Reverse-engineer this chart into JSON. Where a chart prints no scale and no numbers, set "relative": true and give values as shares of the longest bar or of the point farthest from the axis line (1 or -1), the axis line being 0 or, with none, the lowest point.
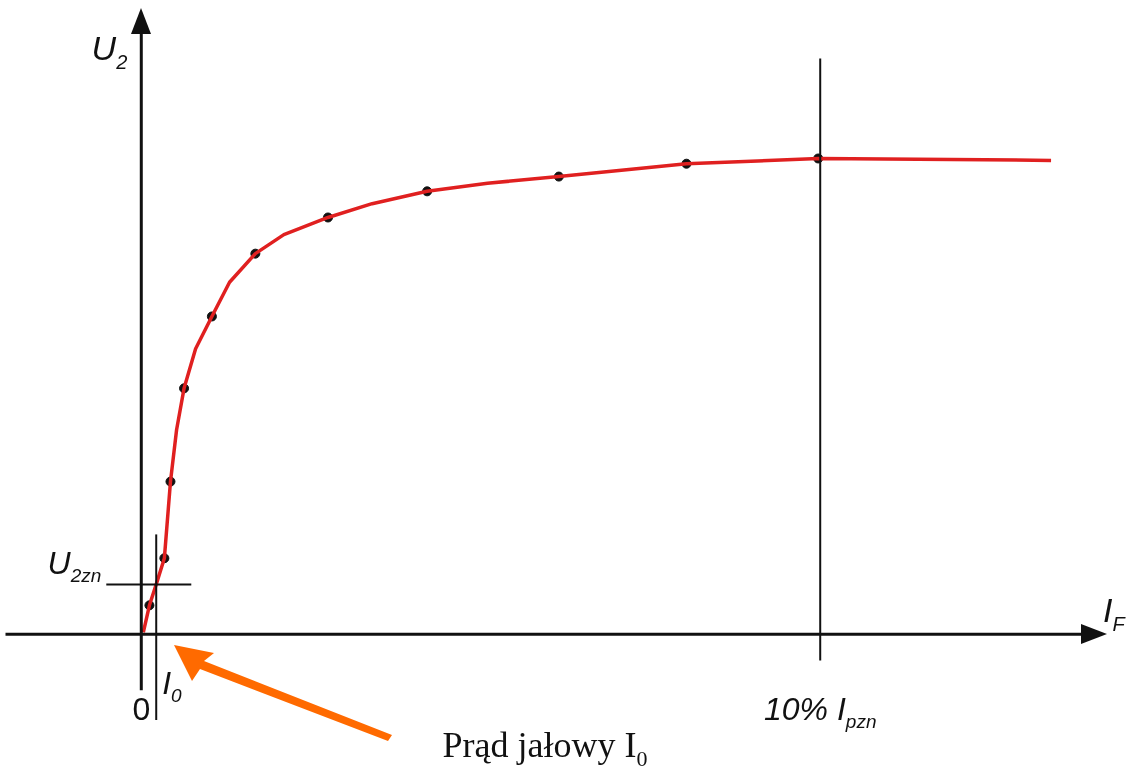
{
  "chart_data": {
    "type": "line",
    "relative": true,
    "xlabel": "I$_{F}$",
    "ylabel": "U$_{2}$",
    "xlim": [
      -2,
      13.9
    ],
    "xticks": [
      {
        "value": 0,
        "label": "0"
      },
      {
        "value": 10,
        "label": "10% I$_{pzn}$"
      }
    ],
    "series": [
      {
        "type": "line",
        "color": "#e02020",
        "marker": "none",
        "x": [
          0.03,
          0.12,
          0.22,
          0.34,
          0.43,
          0.52,
          0.63,
          0.8,
          1.04,
          1.3,
          1.68,
          2.1,
          2.75,
          3.4,
          4.21,
          5.1,
          6.15,
          8.03,
          9.97,
          13.4
        ],
        "values": [
          0.004,
          0.061,
          0.105,
          0.16,
          0.321,
          0.43,
          0.517,
          0.6,
          0.668,
          0.74,
          0.8,
          0.84,
          0.876,
          0.905,
          0.931,
          0.948,
          0.962,
          0.989,
          1.0,
          0.996
        ]
      },
      {
        "type": "scatter",
        "color": "#111111",
        "marker": "circle",
        "x": [
          0.12,
          0.34,
          0.43,
          0.63,
          1.04,
          1.68,
          2.75,
          4.21,
          6.15,
          8.03,
          9.97
        ],
        "values": [
          0.061,
          0.16,
          0.321,
          0.517,
          0.668,
          0.8,
          0.876,
          0.931,
          0.962,
          0.989,
          1.0
        ]
      }
    ],
    "ref_lines": [
      {
        "axis": "x",
        "value": 0.22,
        "label": "I$_{0}$"
      },
      {
        "axis": "x",
        "value": 10,
        "label": null
      },
      {
        "axis": "y",
        "value": 0.105,
        "label": "U$_{2zn}$"
      }
    ],
    "annotations": [
      "Prąd jałowy I$_{0}$"
    ],
    "legend": false,
    "grid": false
  }
}
